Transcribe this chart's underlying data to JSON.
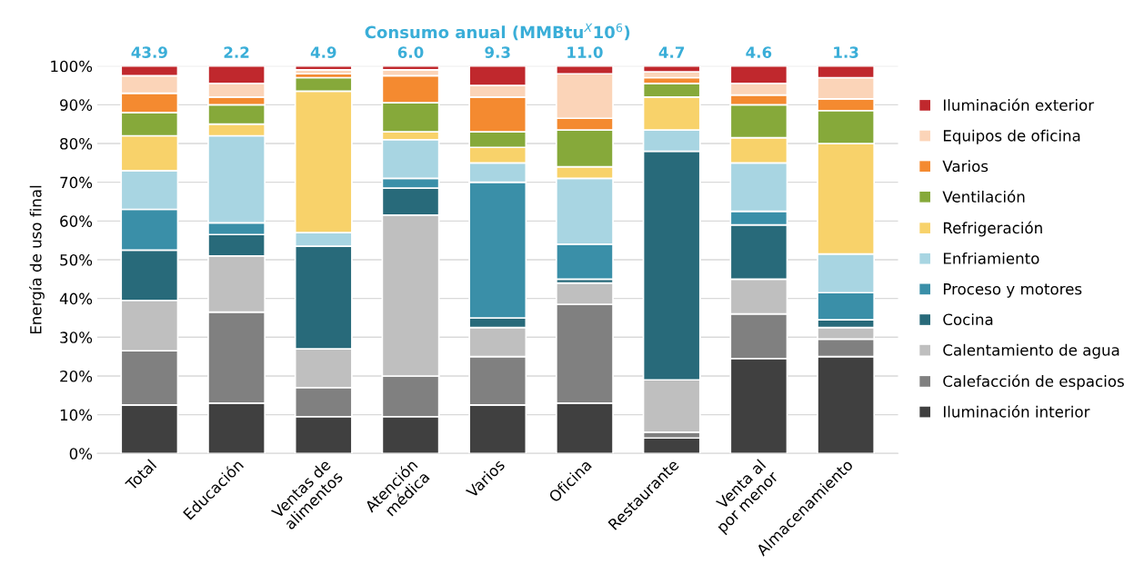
{
  "chart_data": {
    "type": "bar",
    "stacked": true,
    "title": "Consumo anual (MMBtu$^{X}$10$^{6}$)",
    "ylabel": "Energía de uso final",
    "categories": [
      "Total",
      "Educación",
      "Ventas de\nalimentos",
      "Atención\nmédica",
      "Varios",
      "Oficina",
      "Restaurante",
      "Venta al\npor menor",
      "Almacenamiento"
    ],
    "series": [
      {
        "name": "Iluminación interior",
        "color": "#404040",
        "values": [
          12.5,
          13,
          9.5,
          9.5,
          12.5,
          13,
          4,
          24.5,
          25
        ]
      },
      {
        "name": "Calefacción de espacios",
        "color": "#808080",
        "values": [
          14,
          23.5,
          7.5,
          10.5,
          12.5,
          25.5,
          1.5,
          11.5,
          4.5
        ]
      },
      {
        "name": "Calentamiento de agua",
        "color": "#bfbfbf",
        "values": [
          13,
          14.5,
          10,
          41.5,
          7.5,
          5.5,
          13.5,
          9,
          3
        ]
      },
      {
        "name": "Cocina",
        "color": "#286a7a",
        "values": [
          13,
          5.5,
          26.5,
          7,
          2.5,
          1,
          59,
          14,
          2
        ]
      },
      {
        "name": "Proceso y motores",
        "color": "#3a8fa8",
        "values": [
          10.5,
          3,
          0,
          2.5,
          35,
          9,
          0,
          3.5,
          7
        ]
      },
      {
        "name": "Enfriamiento",
        "color": "#a8d5e2",
        "values": [
          10,
          22.5,
          3.5,
          10,
          5,
          17,
          5.5,
          12.5,
          10
        ]
      },
      {
        "name": "Refrigeración",
        "color": "#f8d26a",
        "values": [
          9,
          3,
          36.5,
          2,
          4,
          3,
          8.5,
          6.5,
          28.5
        ]
      },
      {
        "name": "Ventilación",
        "color": "#86a93a",
        "values": [
          6,
          5,
          3.5,
          7.5,
          4,
          9.5,
          3.5,
          8.5,
          8.5
        ]
      },
      {
        "name": "Varios",
        "color": "#f48a30",
        "values": [
          5,
          2,
          1,
          7,
          9,
          3,
          1.5,
          2.5,
          3
        ]
      },
      {
        "name": "Equipos de oficina",
        "color": "#fbd4b8",
        "values": [
          4.5,
          3.5,
          1,
          1.5,
          3,
          11.5,
          1.5,
          3,
          5.5
        ]
      },
      {
        "name": "Iluminación exterior",
        "color": "#c0282d",
        "values": [
          2.5,
          4.5,
          1,
          1,
          5,
          2,
          1.5,
          4.5,
          3
        ]
      }
    ],
    "annotations": [
      {
        "text": "43.9",
        "x": "Total",
        "y": 100
      },
      {
        "text": "2.2",
        "x": "Educación",
        "y": 100
      },
      {
        "text": "4.9",
        "x": "Ventas de\nalimentos",
        "y": 100
      },
      {
        "text": "6.0",
        "x": "Atención\nmédica",
        "y": 100
      },
      {
        "text": "9.3",
        "x": "Varios",
        "y": 100
      },
      {
        "text": "11.0",
        "x": "Oficina",
        "y": 100
      },
      {
        "text": "4.7",
        "x": "Restaurante",
        "y": 100
      },
      {
        "text": "4.6",
        "x": "Venta al\npor menor",
        "y": 100
      },
      {
        "text": "1.3",
        "x": "Almacenamiento",
        "y": 100
      }
    ],
    "ylim": [
      0,
      100
    ],
    "yticks": [
      {
        "value": 0,
        "label": "0%"
      },
      {
        "value": 10,
        "label": "10%"
      },
      {
        "value": 20,
        "label": "20%"
      },
      {
        "value": 30,
        "label": "30%"
      },
      {
        "value": 40,
        "label": "40%"
      },
      {
        "value": 50,
        "label": "50%"
      },
      {
        "value": 60,
        "label": "60%"
      },
      {
        "value": 70,
        "label": "70%"
      },
      {
        "value": 80,
        "label": "80%"
      },
      {
        "value": 90,
        "label": "90%"
      },
      {
        "value": 100,
        "label": "100%"
      }
    ],
    "grid": "y",
    "legend": "right"
  }
}
